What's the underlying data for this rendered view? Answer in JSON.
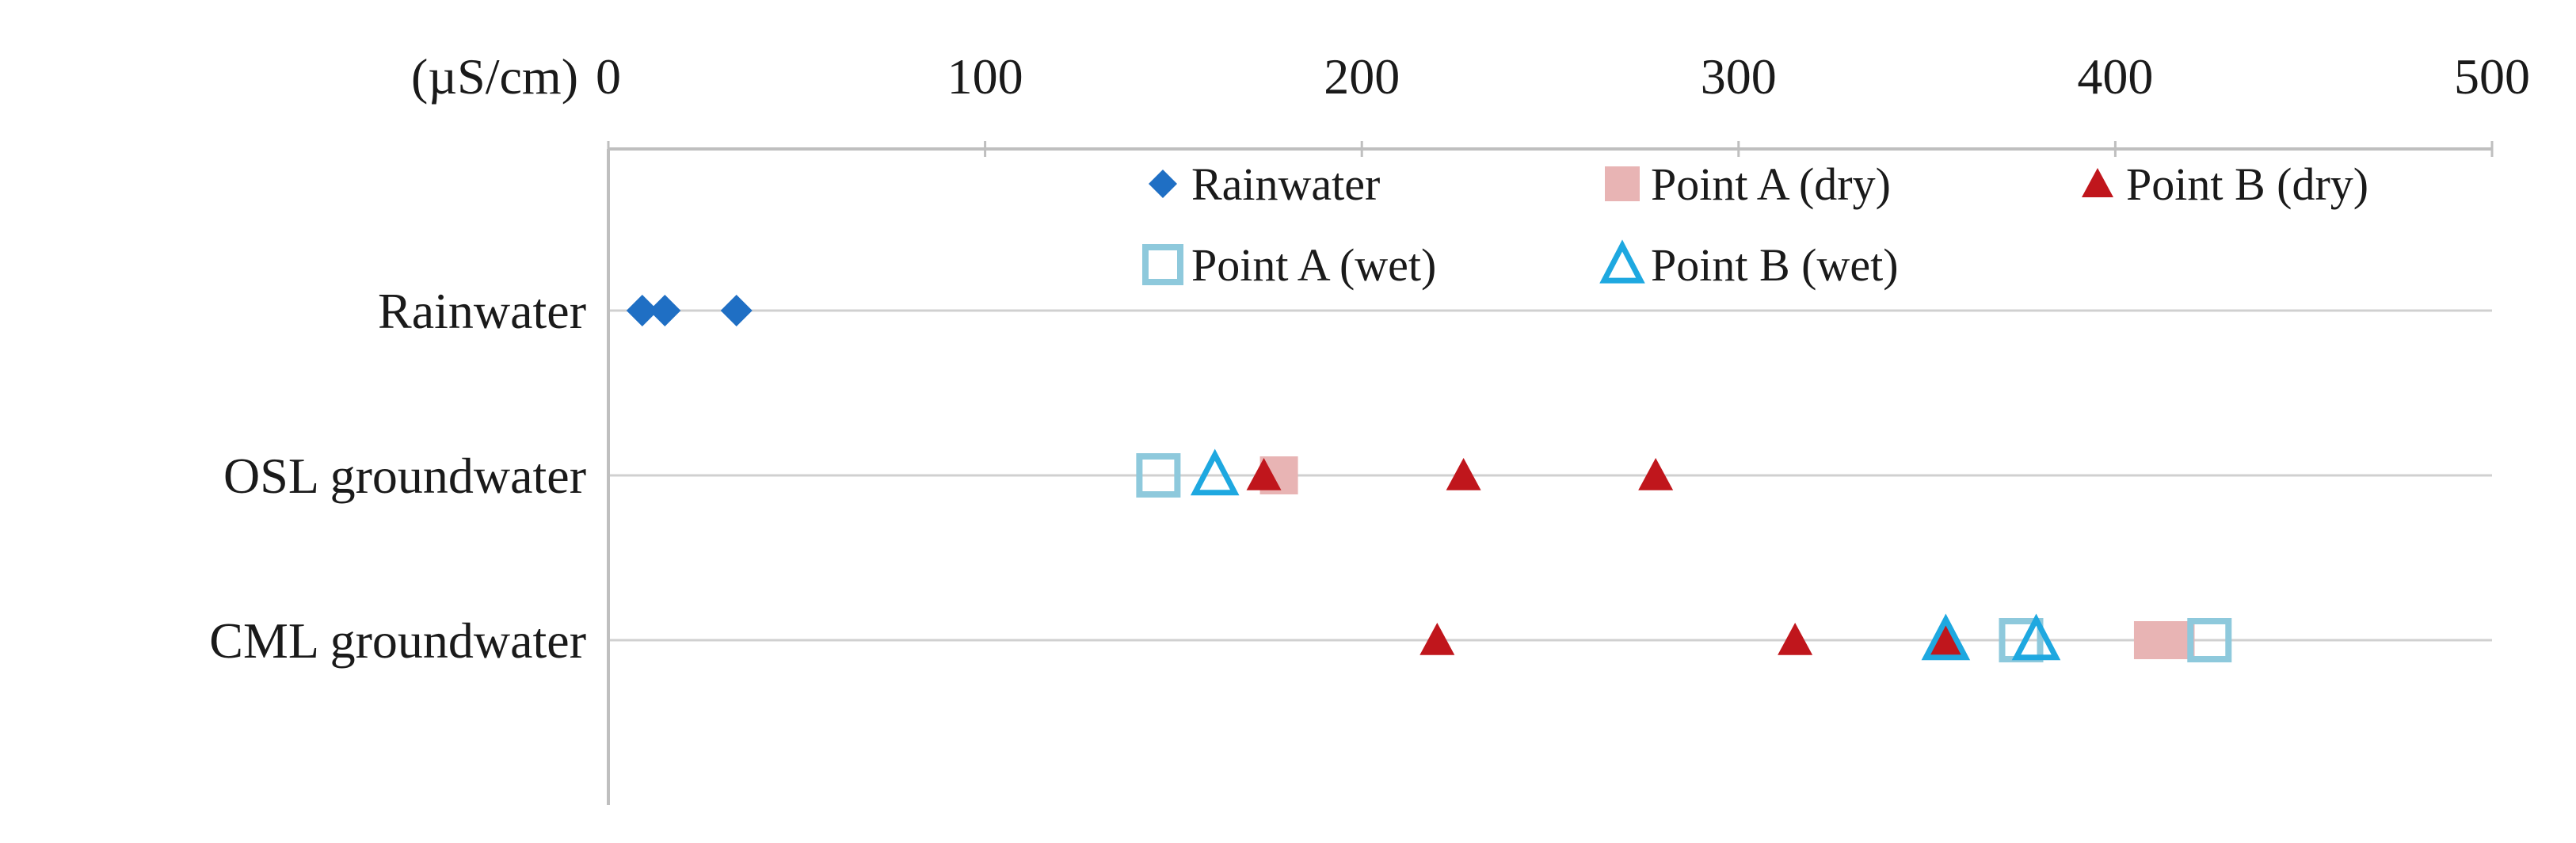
{
  "chart_data": {
    "type": "scatter",
    "unit_label": "(µS/cm)",
    "title": "",
    "xlabel": "",
    "ylabel": "",
    "xlim": [
      0,
      500
    ],
    "x_ticks": [
      "0",
      "100",
      "200",
      "300",
      "400",
      "500"
    ],
    "x_axis_position": "top",
    "categories": [
      "Rainwater",
      "OSL groundwater",
      "CML groundwater"
    ],
    "grid": true,
    "legend": "top-right",
    "series": [
      {
        "name": "Rainwater",
        "marker": "diamond",
        "color": "#1f6fc4",
        "points": [
          {
            "category": "Rainwater",
            "x": 9
          },
          {
            "category": "Rainwater",
            "x": 15
          },
          {
            "category": "Rainwater",
            "x": 34
          }
        ]
      },
      {
        "name": "Point A (dry)",
        "marker": "square-filled",
        "color": "#e8b4b4",
        "points": [
          {
            "category": "OSL groundwater",
            "x": 178
          },
          {
            "category": "CML groundwater",
            "x": 410
          },
          {
            "category": "CML groundwater",
            "x": 416
          }
        ]
      },
      {
        "name": "Point B (dry)",
        "marker": "triangle-filled",
        "color": "#c0161c",
        "points": [
          {
            "category": "OSL groundwater",
            "x": 174
          },
          {
            "category": "OSL groundwater",
            "x": 227
          },
          {
            "category": "OSL groundwater",
            "x": 278
          },
          {
            "category": "CML groundwater",
            "x": 220
          },
          {
            "category": "CML groundwater",
            "x": 315
          },
          {
            "category": "CML groundwater",
            "x": 355
          }
        ]
      },
      {
        "name": "Point A (wet)",
        "marker": "square-open",
        "color": "#8ec9dc",
        "points": [
          {
            "category": "OSL groundwater",
            "x": 146
          },
          {
            "category": "CML groundwater",
            "x": 375
          },
          {
            "category": "CML groundwater",
            "x": 425
          }
        ]
      },
      {
        "name": "Point B (wet)",
        "marker": "triangle-open",
        "color": "#1ea8e0",
        "points": [
          {
            "category": "OSL groundwater",
            "x": 161
          },
          {
            "category": "CML groundwater",
            "x": 355
          },
          {
            "category": "CML groundwater",
            "x": 379
          }
        ]
      }
    ]
  }
}
